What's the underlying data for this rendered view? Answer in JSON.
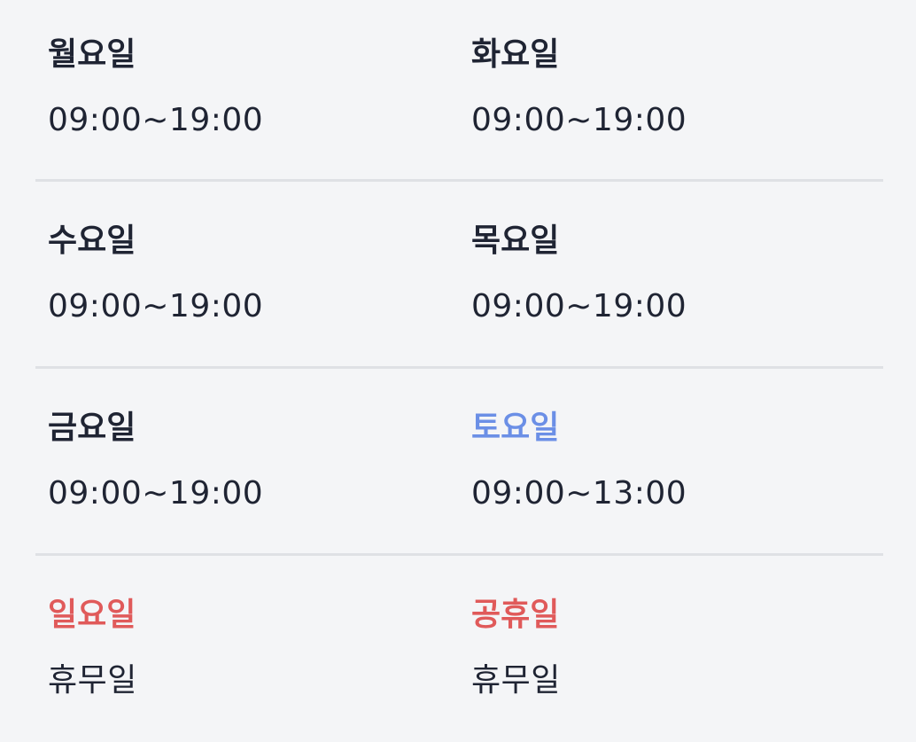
{
  "schedule": {
    "rows": [
      {
        "left": {
          "day": "월요일",
          "hours": "09:00~19:00"
        },
        "right": {
          "day": "화요일",
          "hours": "09:00~19:00"
        }
      },
      {
        "left": {
          "day": "수요일",
          "hours": "09:00~19:00"
        },
        "right": {
          "day": "목요일",
          "hours": "09:00~19:00"
        }
      },
      {
        "left": {
          "day": "금요일",
          "hours": "09:00~19:00"
        },
        "right": {
          "day": "토요일",
          "hours": "09:00~13:00",
          "color": "#6b8fe6"
        }
      },
      {
        "left": {
          "day": "일요일",
          "hours": "휴무일",
          "color": "#e05a5a"
        },
        "right": {
          "day": "공휴일",
          "hours": "휴무일",
          "color": "#e05a5a"
        }
      }
    ]
  },
  "colors": {
    "text": "#1f2433",
    "saturday": "#6b8fe6",
    "holiday": "#e05a5a",
    "divider": "#dfe1e5",
    "background": "#f4f5f7"
  }
}
